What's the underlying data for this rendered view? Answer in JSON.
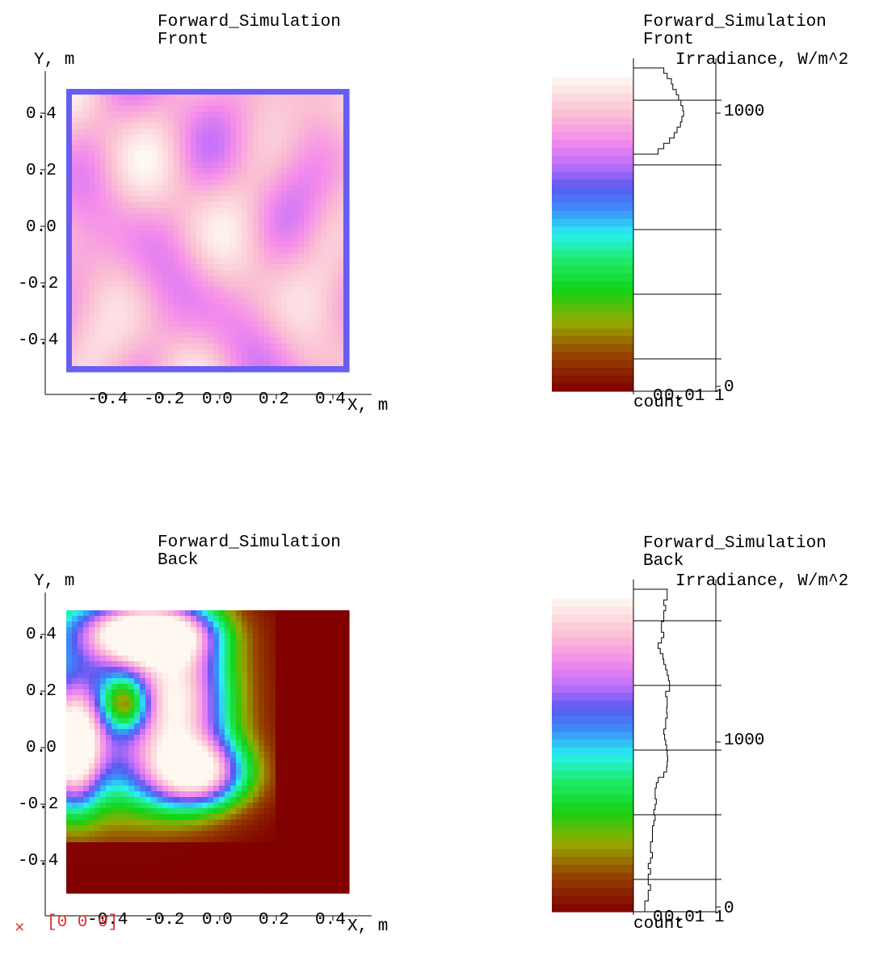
{
  "panels": [
    {
      "title": "Forward_Simulation",
      "subtitle": "Front",
      "map": {
        "ylabel": "Y, m",
        "xlabel": "X, m",
        "xticks": [
          "-0.4",
          "-0.2",
          "0.0",
          "0.2",
          "0.4"
        ],
        "yticks": [
          "0.4",
          "0.2",
          "0.0",
          "-0.2",
          "-0.4"
        ]
      },
      "hist": {
        "title": "Forward_Simulation",
        "subtitle": "Front",
        "quantity": "Irradiance, W/m^2",
        "ticks": [
          "1000",
          "0"
        ],
        "xticks": [
          "0",
          "0.01",
          "1"
        ],
        "xlabel": "count"
      }
    },
    {
      "title": "Forward_Simulation",
      "subtitle": "Back",
      "map": {
        "ylabel": "Y, m",
        "xlabel": "X, m",
        "xticks": [
          "-0.4",
          "-0.2",
          "0.0",
          "0.2",
          "0.4"
        ],
        "yticks": [
          "0.4",
          "0.2",
          "0.0",
          "-0.2",
          "-0.4"
        ]
      },
      "hist": {
        "title": "Forward_Simulation",
        "subtitle": "Back",
        "quantity": "Irradiance, W/m^2",
        "ticks": [
          "1000",
          "0"
        ],
        "xticks": [
          "0",
          "0.01",
          "1"
        ],
        "xlabel": "count"
      }
    }
  ],
  "marker": {
    "text": "[0 0 0]",
    "color": "#e03030"
  },
  "chart_data": [
    {
      "type": "heatmap",
      "title": "Forward_Simulation",
      "subtitle": "Front",
      "xlabel": "X, m",
      "ylabel": "Y, m",
      "xlim": [
        -0.5,
        0.5
      ],
      "ylim": [
        -0.5,
        0.5
      ],
      "colorbar_label": "Irradiance, W/m^2",
      "colorbar_range": [
        0,
        1200
      ],
      "description_values": "irradiance roughly uniform between about 800 and 1200 W/m^2, blue-violet edge at the border"
    },
    {
      "type": "bar",
      "title": "Forward_Simulation",
      "subtitle": "Front",
      "xlabel": "count",
      "ylabel": "Irradiance, W/m^2",
      "x_scale": "log",
      "bin_centers": [
        1190,
        1170,
        1150,
        1130,
        1110,
        1090,
        1070,
        1050,
        1030,
        1010,
        990,
        970,
        950,
        930,
        910,
        890
      ],
      "counts": [
        0.002,
        0.003,
        0.005,
        0.006,
        0.009,
        0.012,
        0.016,
        0.02,
        0.022,
        0.018,
        0.015,
        0.01,
        0.007,
        0.004,
        0.002,
        0.001
      ]
    },
    {
      "type": "heatmap",
      "title": "Forward_Simulation",
      "subtitle": "Back",
      "xlabel": "X, m",
      "ylabel": "Y, m",
      "xlim": [
        -0.5,
        0.5
      ],
      "ylim": [
        -0.5,
        0.5
      ],
      "colorbar_label": "Irradiance, W/m^2",
      "colorbar_range": [
        0,
        1200
      ]
    },
    {
      "type": "bar",
      "title": "Forward_Simulation",
      "subtitle": "Back",
      "xlabel": "count",
      "ylabel": "Irradiance, W/m^2",
      "x_scale": "log",
      "bin_centers": [
        1190,
        1170,
        1150,
        1130,
        1110,
        1090,
        1070,
        1050,
        1030,
        1010,
        990,
        970,
        950,
        930,
        910,
        890,
        870,
        850,
        830,
        810,
        790,
        770,
        750,
        730,
        710,
        690,
        670,
        650,
        630,
        610,
        590,
        570,
        550,
        530,
        510,
        490,
        470,
        450,
        430,
        410,
        390,
        370,
        350,
        330,
        310,
        290,
        270,
        250,
        230,
        210,
        190,
        170,
        150,
        130,
        110,
        90,
        70,
        50,
        30,
        10
      ],
      "counts": [
        0.003,
        0.003,
        0.002,
        0.0025,
        0.002,
        0.002,
        0.0015,
        0.0015,
        0.002,
        0.0015,
        0.001,
        0.0013,
        0.0018,
        0.002,
        0.0025,
        0.003,
        0.0035,
        0.004,
        0.004,
        0.0025,
        0.003,
        0.003,
        0.0028,
        0.003,
        0.0025,
        0.0025,
        0.002,
        0.0022,
        0.0025,
        0.0028,
        0.003,
        0.0032,
        0.003,
        0.0028,
        0.002,
        0.001,
        0.0008,
        0.0007,
        0.0007,
        0.0008,
        0.0007,
        0.0006,
        0.0007,
        0.0006,
        0.0005,
        0.0005,
        0.0005,
        0.0004,
        0.0004,
        0.0005,
        0.0004,
        0.0003,
        0.0004,
        0.0003,
        0.0003,
        0.0004,
        0.0003,
        0.0003,
        0.0002,
        0.0002
      ]
    }
  ]
}
